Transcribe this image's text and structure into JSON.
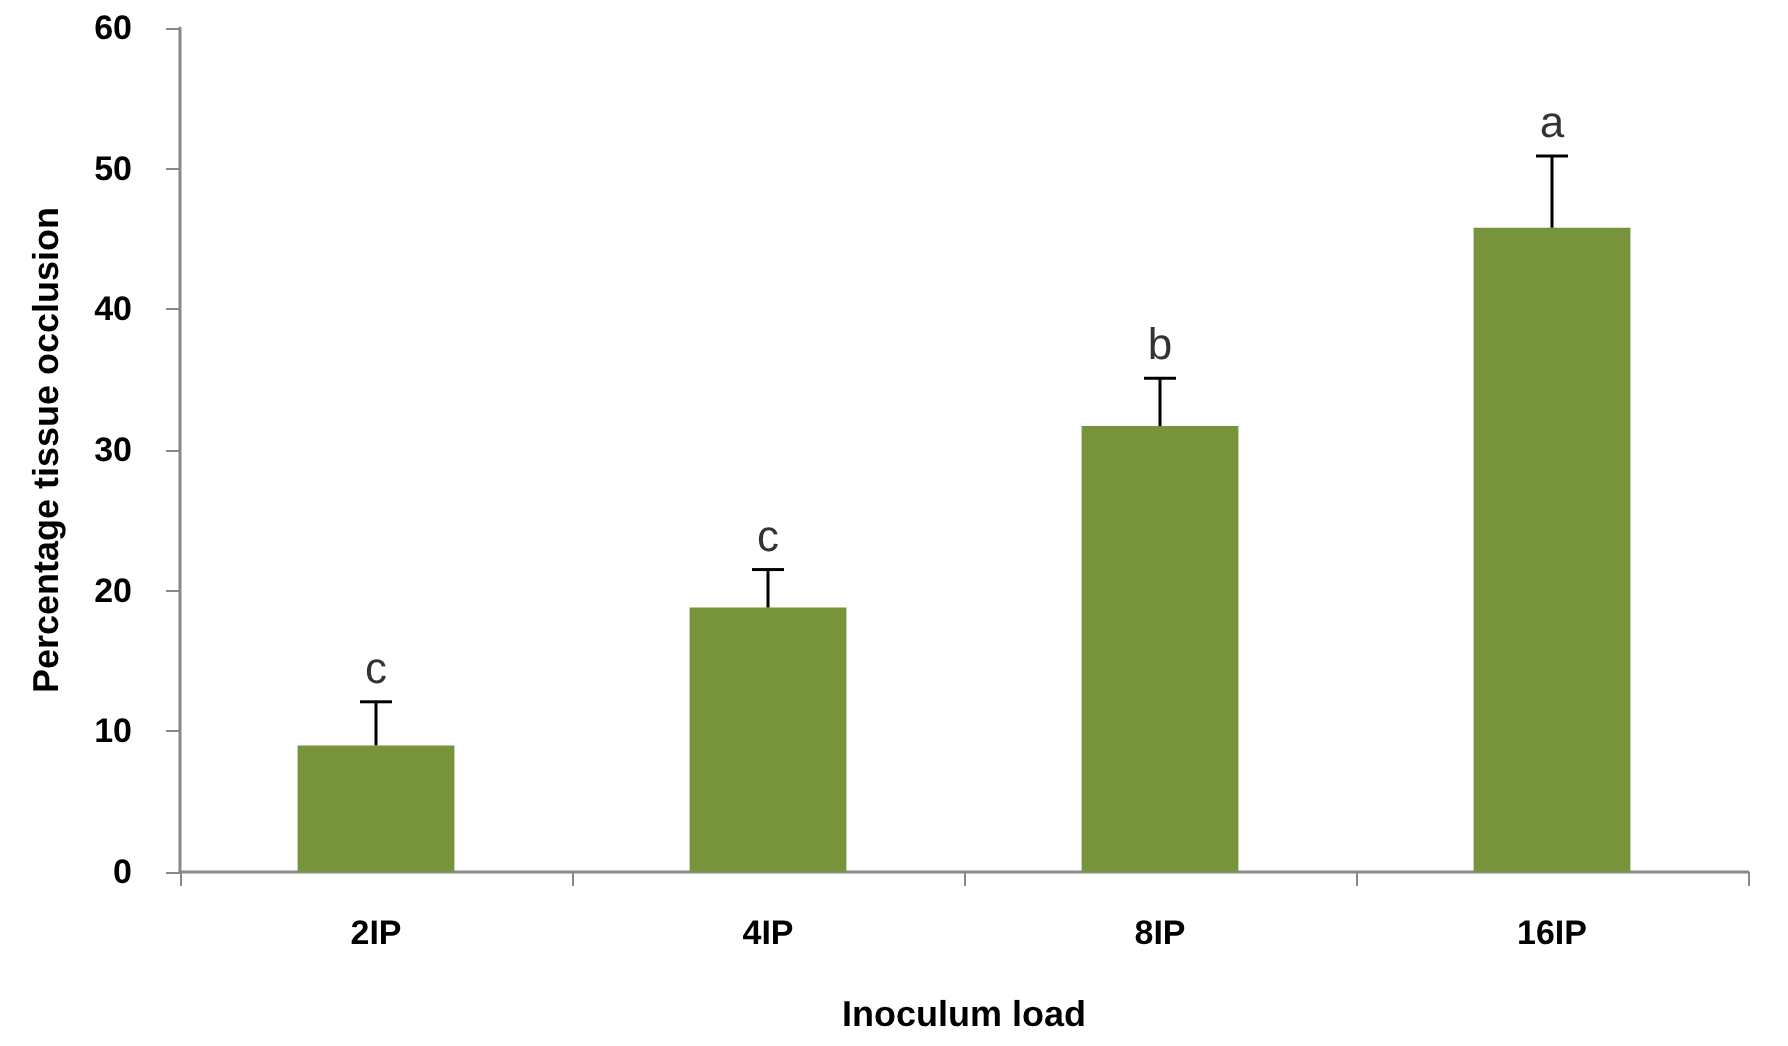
{
  "chart_data": {
    "type": "bar",
    "xlabel": "Inoculum load",
    "ylabel": "Percentage tissue occlusion",
    "categories": [
      "2IP",
      "4IP",
      "8IP",
      "16IP"
    ],
    "values": [
      9.0,
      18.8,
      31.7,
      45.8
    ],
    "errors": [
      [
        9.0,
        12.1
      ],
      [
        18.8,
        21.5
      ],
      [
        31.7,
        35.1
      ],
      [
        45.8,
        50.9
      ]
    ],
    "color": "#77933c",
    "ylim": [
      0,
      60
    ],
    "yticks": [
      0,
      10,
      20,
      30,
      40,
      50,
      60
    ],
    "grid": false,
    "annotations": [
      {
        "text": "c",
        "x": "2IP",
        "y": 12.1
      },
      {
        "text": "c",
        "x": "4IP",
        "y": 21.5
      },
      {
        "text": "b",
        "x": "8IP",
        "y": 35.1
      },
      {
        "text": "a",
        "x": "16IP",
        "y": 50.9
      }
    ]
  }
}
